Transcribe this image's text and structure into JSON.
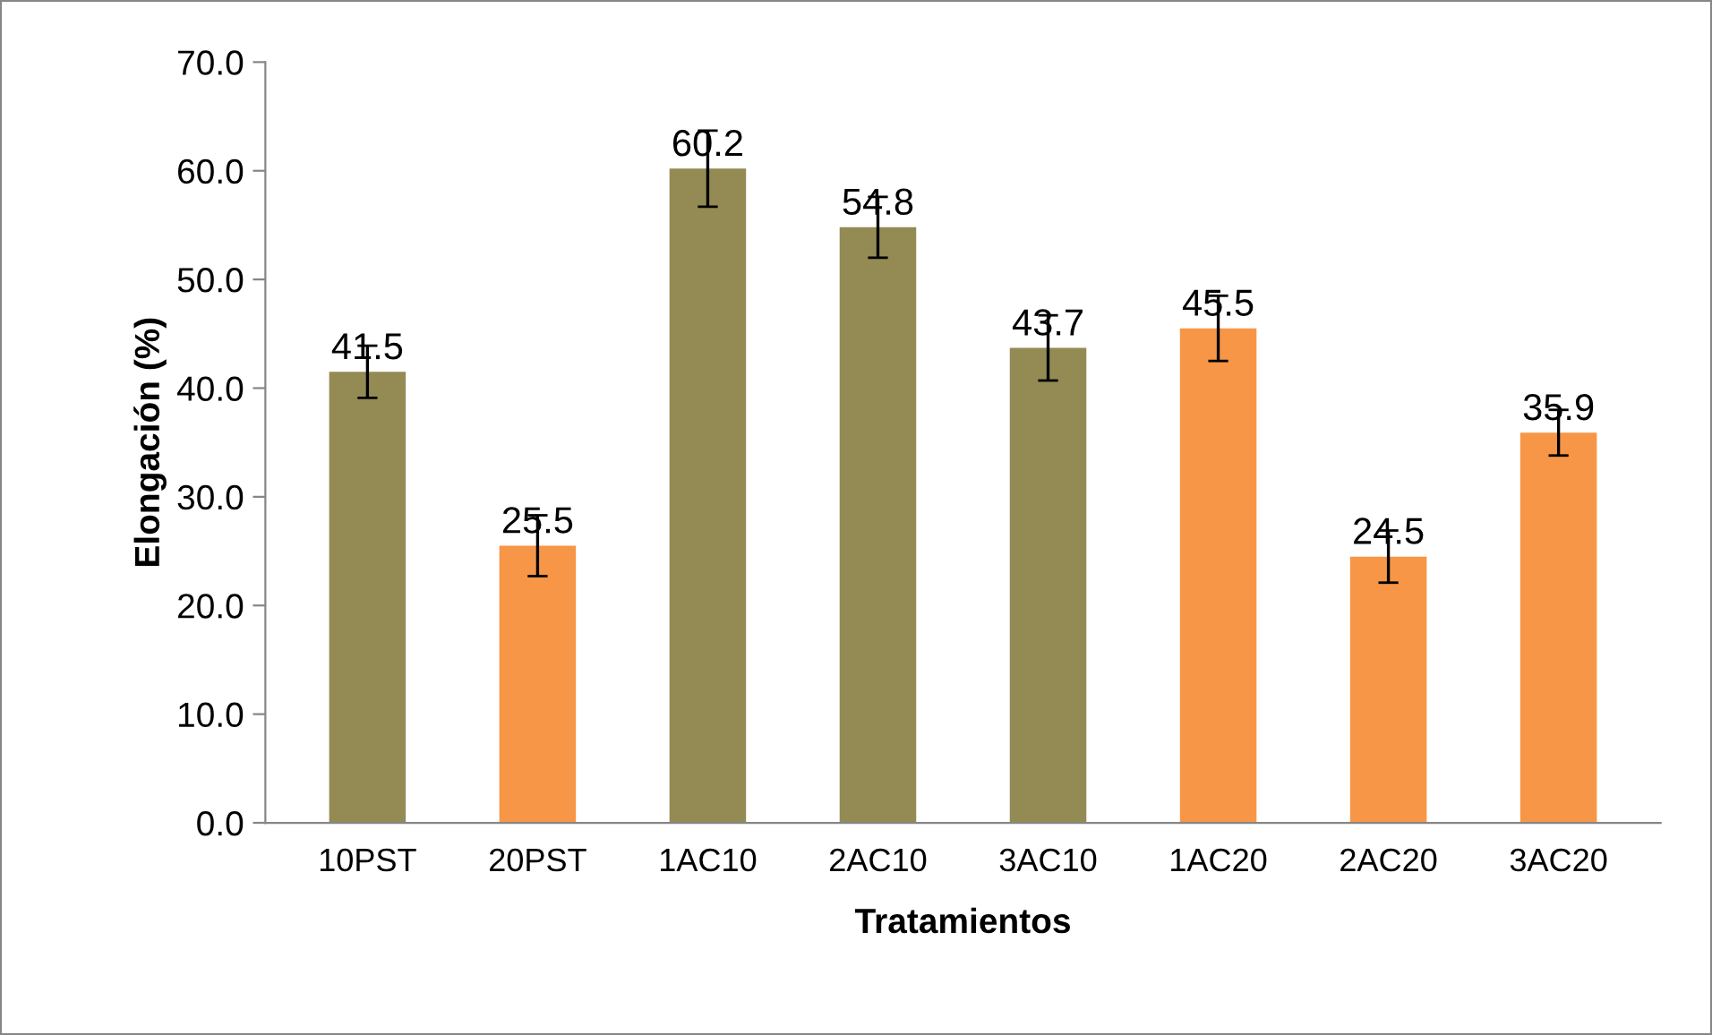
{
  "chart_data": {
    "type": "bar",
    "xlabel": "Tratamientos",
    "ylabel": "Elongación (%)",
    "categories": [
      "10PST",
      "20PST",
      "1AC10",
      "2AC10",
      "3AC10",
      "1AC20",
      "2AC20",
      "3AC20"
    ],
    "values": [
      41.5,
      25.5,
      60.2,
      54.8,
      43.7,
      45.5,
      24.5,
      35.9
    ],
    "colors": [
      "#948a54",
      "#f79646",
      "#948a54",
      "#948a54",
      "#948a54",
      "#f79646",
      "#f79646",
      "#f79646"
    ],
    "errors": [
      2.4,
      2.8,
      3.5,
      2.8,
      3.0,
      3.0,
      2.4,
      2.1
    ],
    "data_labels": true,
    "ylim": [
      0,
      70
    ],
    "yticks": [
      {
        "value": 0,
        "label": "0.0"
      },
      {
        "value": 10,
        "label": "10.0"
      },
      {
        "value": 20,
        "label": "20.0"
      },
      {
        "value": 30,
        "label": "30.0"
      },
      {
        "value": 40,
        "label": "40.0"
      },
      {
        "value": 50,
        "label": "50.0"
      },
      {
        "value": 60,
        "label": "60.0"
      },
      {
        "value": 70,
        "label": "70.0"
      }
    ],
    "grid": false,
    "legend": false
  }
}
